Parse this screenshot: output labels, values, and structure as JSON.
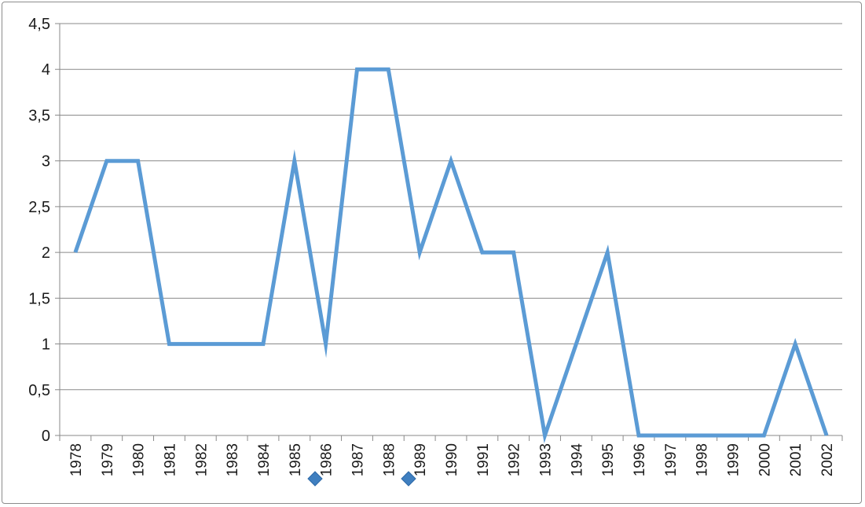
{
  "chart_data": {
    "type": "line",
    "categories": [
      "1978",
      "1979",
      "1980",
      "1981",
      "1982",
      "1983",
      "1984",
      "1985",
      "1986",
      "1987",
      "1988",
      "1989",
      "1990",
      "1991",
      "1992",
      "1993",
      "1994",
      "1995",
      "1996",
      "1997",
      "1998",
      "1999",
      "2000",
      "2001",
      "2002"
    ],
    "series": [
      {
        "values": [
          2,
          3,
          3,
          1,
          1,
          1,
          1,
          3,
          1,
          4,
          4,
          2,
          3,
          2,
          2,
          0,
          1,
          2,
          0,
          0,
          0,
          0,
          0,
          1,
          0
        ]
      }
    ],
    "ylim": [
      0,
      4.5
    ],
    "yticks": [
      "0",
      "0,5",
      "1",
      "1,5",
      "2",
      "2,5",
      "3",
      "3,5",
      "4",
      "4,5"
    ],
    "grid": true,
    "legend": "none",
    "line_color": "#5b9bd5",
    "marker_color": "#3f7fc0"
  }
}
